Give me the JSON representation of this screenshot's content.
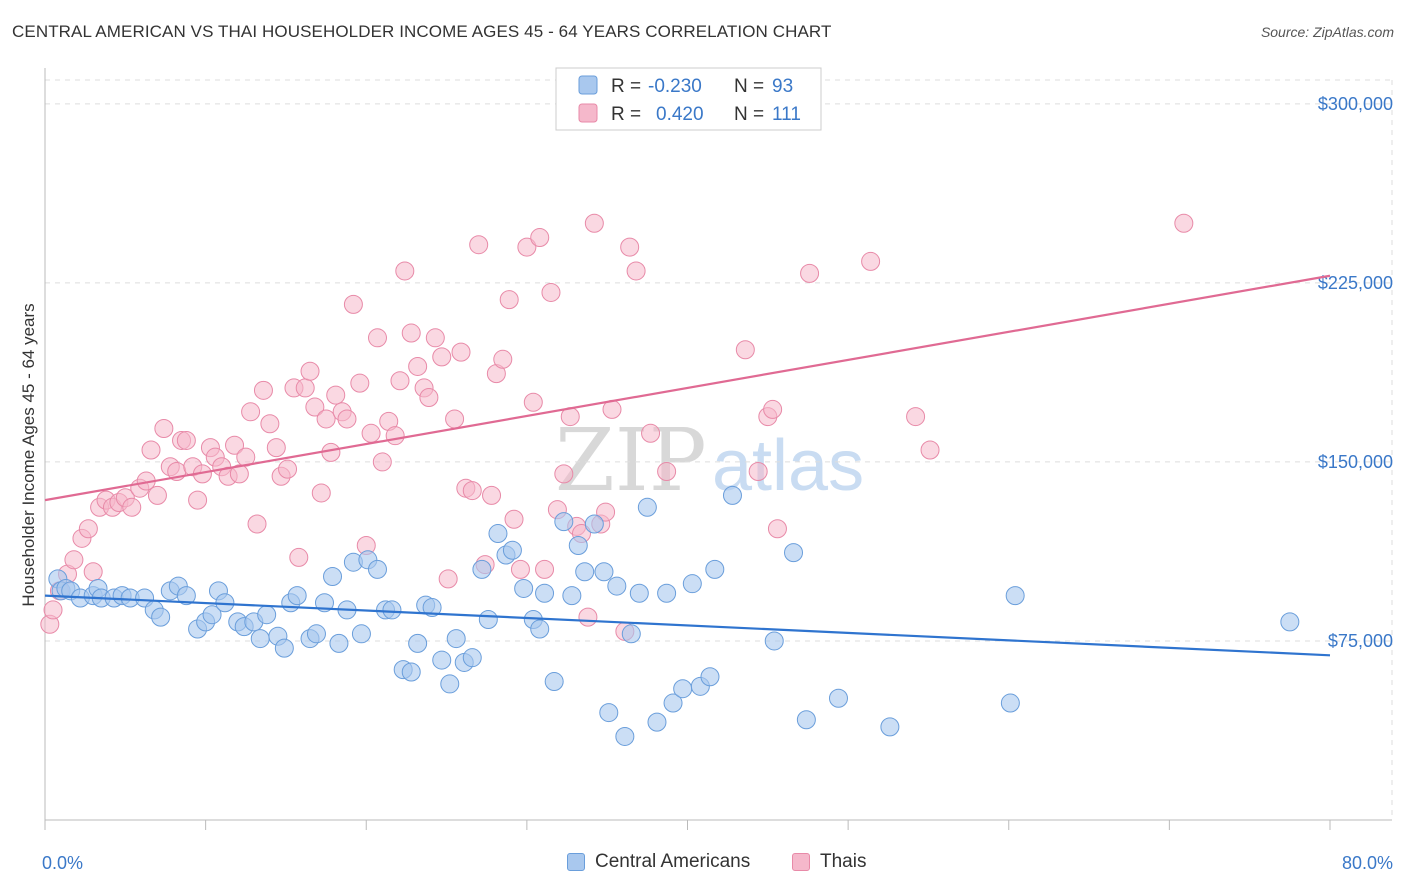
{
  "title": "CENTRAL AMERICAN VS THAI HOUSEHOLDER INCOME AGES 45 - 64 YEARS CORRELATION CHART",
  "source": "Source: ZipAtlas.com",
  "watermark": {
    "zip": "ZIP",
    "atlas": "atlas"
  },
  "legend": {
    "r_label": "R =",
    "n_label": "N =",
    "rows": [
      {
        "r": "-0.230",
        "n": "93"
      },
      {
        "r": "0.420",
        "n": "111"
      }
    ]
  },
  "bottom_legend": [
    "Central Americans",
    "Thais"
  ],
  "colors": {
    "blue_fill": "#a9c8ee",
    "blue_stroke": "#6a9edb",
    "blue_line": "#2f74cf",
    "pink_fill": "#f5b8cb",
    "pink_stroke": "#e88aa8",
    "pink_line": "#e06a93",
    "tick_text": "#3a78c8"
  },
  "chart_data": {
    "type": "scatter",
    "title": "CENTRAL AMERICAN VS THAI HOUSEHOLDER INCOME AGES 45 - 64 YEARS CORRELATION CHART",
    "xlabel": "",
    "ylabel": "Householder Income Ages 45 - 64 years",
    "xlim": [
      0,
      80
    ],
    "ylim": [
      0,
      310000
    ],
    "x_tick_labels": [
      "0.0%",
      "80.0%"
    ],
    "y_ticks": [
      75000,
      150000,
      225000,
      300000
    ],
    "y_tick_labels": [
      "$75,000",
      "$150,000",
      "$225,000",
      "$300,000"
    ],
    "grid": true,
    "legend_position": "top-center",
    "series": [
      {
        "name": "Central Americans",
        "r": -0.23,
        "n": 93,
        "trend": {
          "x": [
            0,
            80
          ],
          "y": [
            94000,
            69000
          ]
        },
        "points": [
          [
            0.8,
            101000
          ],
          [
            1.0,
            96000
          ],
          [
            1.3,
            97000
          ],
          [
            1.6,
            96000
          ],
          [
            2.2,
            93000
          ],
          [
            3.0,
            94000
          ],
          [
            3.3,
            97000
          ],
          [
            3.5,
            93000
          ],
          [
            4.3,
            93000
          ],
          [
            4.8,
            94000
          ],
          [
            5.3,
            93000
          ],
          [
            6.2,
            93000
          ],
          [
            6.8,
            88000
          ],
          [
            7.2,
            85000
          ],
          [
            7.8,
            96000
          ],
          [
            8.3,
            98000
          ],
          [
            8.8,
            94000
          ],
          [
            9.5,
            80000
          ],
          [
            10.0,
            83000
          ],
          [
            10.4,
            86000
          ],
          [
            10.8,
            96000
          ],
          [
            11.2,
            91000
          ],
          [
            12.0,
            83000
          ],
          [
            12.4,
            81000
          ],
          [
            13.0,
            83000
          ],
          [
            13.4,
            76000
          ],
          [
            13.8,
            86000
          ],
          [
            14.5,
            77000
          ],
          [
            14.9,
            72000
          ],
          [
            15.3,
            91000
          ],
          [
            15.7,
            94000
          ],
          [
            16.5,
            76000
          ],
          [
            16.9,
            78000
          ],
          [
            17.4,
            91000
          ],
          [
            17.9,
            102000
          ],
          [
            18.3,
            74000
          ],
          [
            18.8,
            88000
          ],
          [
            19.2,
            108000
          ],
          [
            19.7,
            78000
          ],
          [
            20.1,
            109000
          ],
          [
            20.7,
            105000
          ],
          [
            21.2,
            88000
          ],
          [
            21.6,
            88000
          ],
          [
            22.3,
            63000
          ],
          [
            22.8,
            62000
          ],
          [
            23.2,
            74000
          ],
          [
            23.7,
            90000
          ],
          [
            24.1,
            89000
          ],
          [
            24.7,
            67000
          ],
          [
            25.2,
            57000
          ],
          [
            25.6,
            76000
          ],
          [
            26.1,
            66000
          ],
          [
            26.6,
            68000
          ],
          [
            27.2,
            105000
          ],
          [
            27.6,
            84000
          ],
          [
            28.2,
            120000
          ],
          [
            28.7,
            111000
          ],
          [
            29.1,
            113000
          ],
          [
            29.8,
            97000
          ],
          [
            30.4,
            84000
          ],
          [
            30.8,
            80000
          ],
          [
            31.1,
            95000
          ],
          [
            31.7,
            58000
          ],
          [
            32.3,
            125000
          ],
          [
            32.8,
            94000
          ],
          [
            33.2,
            115000
          ],
          [
            33.6,
            104000
          ],
          [
            34.2,
            124000
          ],
          [
            34.8,
            104000
          ],
          [
            35.1,
            45000
          ],
          [
            35.6,
            98000
          ],
          [
            36.1,
            35000
          ],
          [
            36.5,
            78000
          ],
          [
            37.0,
            95000
          ],
          [
            37.5,
            131000
          ],
          [
            38.1,
            41000
          ],
          [
            38.7,
            95000
          ],
          [
            39.1,
            49000
          ],
          [
            39.7,
            55000
          ],
          [
            40.3,
            99000
          ],
          [
            40.8,
            56000
          ],
          [
            41.4,
            60000
          ],
          [
            41.7,
            105000
          ],
          [
            42.8,
            136000
          ],
          [
            45.4,
            75000
          ],
          [
            46.6,
            112000
          ],
          [
            47.4,
            42000
          ],
          [
            49.4,
            51000
          ],
          [
            52.6,
            39000
          ],
          [
            60.1,
            49000
          ],
          [
            60.4,
            94000
          ],
          [
            77.5,
            83000
          ]
        ]
      },
      {
        "name": "Thais",
        "r": 0.42,
        "n": 111,
        "trend": {
          "x": [
            0,
            80
          ],
          "y": [
            134000,
            228000
          ]
        },
        "points": [
          [
            0.3,
            82000
          ],
          [
            0.5,
            88000
          ],
          [
            0.9,
            96000
          ],
          [
            1.4,
            103000
          ],
          [
            1.8,
            109000
          ],
          [
            2.3,
            118000
          ],
          [
            2.7,
            122000
          ],
          [
            3.0,
            104000
          ],
          [
            3.4,
            131000
          ],
          [
            3.8,
            134000
          ],
          [
            4.2,
            131000
          ],
          [
            4.6,
            133000
          ],
          [
            5.0,
            135000
          ],
          [
            5.4,
            131000
          ],
          [
            5.9,
            139000
          ],
          [
            6.3,
            142000
          ],
          [
            6.6,
            155000
          ],
          [
            7.0,
            136000
          ],
          [
            7.4,
            164000
          ],
          [
            7.8,
            148000
          ],
          [
            8.2,
            146000
          ],
          [
            8.5,
            159000
          ],
          [
            8.8,
            159000
          ],
          [
            9.2,
            148000
          ],
          [
            9.5,
            134000
          ],
          [
            9.8,
            145000
          ],
          [
            10.3,
            156000
          ],
          [
            10.6,
            152000
          ],
          [
            11.0,
            148000
          ],
          [
            11.4,
            144000
          ],
          [
            11.8,
            157000
          ],
          [
            12.1,
            145000
          ],
          [
            12.5,
            152000
          ],
          [
            12.8,
            171000
          ],
          [
            13.2,
            124000
          ],
          [
            13.6,
            180000
          ],
          [
            14.0,
            166000
          ],
          [
            14.4,
            156000
          ],
          [
            14.7,
            144000
          ],
          [
            15.1,
            147000
          ],
          [
            15.5,
            181000
          ],
          [
            15.8,
            110000
          ],
          [
            16.2,
            181000
          ],
          [
            16.5,
            188000
          ],
          [
            16.8,
            173000
          ],
          [
            17.2,
            137000
          ],
          [
            17.5,
            168000
          ],
          [
            17.8,
            154000
          ],
          [
            18.1,
            178000
          ],
          [
            18.5,
            171000
          ],
          [
            18.8,
            168000
          ],
          [
            19.2,
            216000
          ],
          [
            19.6,
            183000
          ],
          [
            20.0,
            115000
          ],
          [
            20.3,
            162000
          ],
          [
            20.7,
            202000
          ],
          [
            21.0,
            150000
          ],
          [
            21.4,
            167000
          ],
          [
            21.8,
            161000
          ],
          [
            22.1,
            184000
          ],
          [
            22.4,
            230000
          ],
          [
            22.8,
            204000
          ],
          [
            23.2,
            190000
          ],
          [
            23.6,
            181000
          ],
          [
            23.9,
            177000
          ],
          [
            24.3,
            202000
          ],
          [
            24.7,
            194000
          ],
          [
            25.1,
            101000
          ],
          [
            25.5,
            168000
          ],
          [
            25.9,
            196000
          ],
          [
            26.2,
            139000
          ],
          [
            26.6,
            138000
          ],
          [
            27.0,
            241000
          ],
          [
            27.4,
            107000
          ],
          [
            27.8,
            136000
          ],
          [
            28.1,
            187000
          ],
          [
            28.5,
            193000
          ],
          [
            28.9,
            218000
          ],
          [
            29.2,
            126000
          ],
          [
            29.6,
            105000
          ],
          [
            30.0,
            240000
          ],
          [
            30.4,
            175000
          ],
          [
            30.8,
            244000
          ],
          [
            31.1,
            105000
          ],
          [
            31.5,
            221000
          ],
          [
            31.9,
            130000
          ],
          [
            32.3,
            145000
          ],
          [
            32.7,
            169000
          ],
          [
            33.1,
            123000
          ],
          [
            33.4,
            120000
          ],
          [
            33.8,
            85000
          ],
          [
            34.2,
            250000
          ],
          [
            34.6,
            124000
          ],
          [
            34.9,
            129000
          ],
          [
            35.3,
            172000
          ],
          [
            36.1,
            79000
          ],
          [
            36.4,
            240000
          ],
          [
            36.8,
            230000
          ],
          [
            37.7,
            162000
          ],
          [
            38.7,
            146000
          ],
          [
            43.6,
            197000
          ],
          [
            44.4,
            146000
          ],
          [
            45.0,
            169000
          ],
          [
            45.3,
            172000
          ],
          [
            45.6,
            122000
          ],
          [
            47.6,
            229000
          ],
          [
            51.4,
            234000
          ],
          [
            54.2,
            169000
          ],
          [
            55.1,
            155000
          ],
          [
            70.9,
            250000
          ]
        ]
      }
    ]
  }
}
